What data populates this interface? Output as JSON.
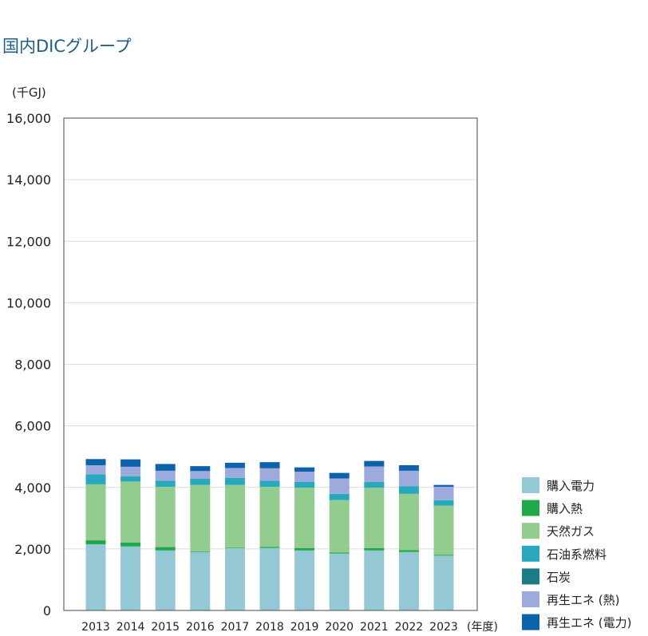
{
  "heading": "国内DICグループ",
  "chart_data": {
    "type": "bar",
    "stacked": true,
    "ylabel": "(千GJ)",
    "xlabel": "(年度)",
    "ylim": [
      0,
      16000
    ],
    "yticks": [
      "0",
      "2,000",
      "4,000",
      "6,000",
      "8,000",
      "10,000",
      "12,000",
      "14,000",
      "16,000"
    ],
    "ytick_values": [
      0,
      2000,
      4000,
      6000,
      8000,
      10000,
      12000,
      14000,
      16000
    ],
    "grid": true,
    "legend_position": "bottom-right",
    "categories": [
      "2013",
      "2014",
      "2015",
      "2016",
      "2017",
      "2018",
      "2019",
      "2020",
      "2021",
      "2022",
      "2023"
    ],
    "series": [
      {
        "name": "購入電力",
        "color": "#93c8d4",
        "values": [
          2150,
          2080,
          1950,
          1900,
          2030,
          2030,
          1950,
          1850,
          1950,
          1900,
          1780
        ]
      },
      {
        "name": "購入熱",
        "color": "#1ea84a",
        "values": [
          130,
          130,
          110,
          20,
          20,
          40,
          80,
          30,
          80,
          60,
          30
        ]
      },
      {
        "name": "天然ガス",
        "color": "#92cc8f",
        "values": [
          1820,
          1980,
          1960,
          2160,
          2030,
          1950,
          1960,
          1710,
          1960,
          1830,
          1600
        ]
      },
      {
        "name": "石油系燃料",
        "color": "#27a8bd",
        "values": [
          320,
          170,
          200,
          200,
          230,
          200,
          190,
          200,
          190,
          250,
          170
        ]
      },
      {
        "name": "石炭",
        "color": "#1b7b86",
        "values": [
          0,
          0,
          0,
          0,
          0,
          0,
          0,
          0,
          0,
          0,
          0
        ]
      },
      {
        "name": "再生エネ (熱)",
        "color": "#9cabdb",
        "values": [
          300,
          310,
          320,
          250,
          320,
          400,
          330,
          500,
          500,
          500,
          440
        ]
      },
      {
        "name": "再生エネ (電力)",
        "color": "#0d62ac",
        "values": [
          200,
          240,
          220,
          160,
          170,
          200,
          140,
          180,
          180,
          180,
          60
        ]
      }
    ]
  }
}
